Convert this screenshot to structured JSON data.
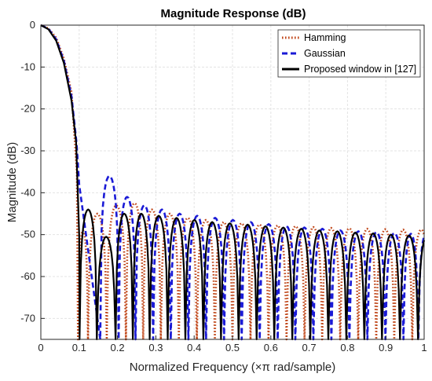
{
  "chart_data": {
    "type": "line",
    "title": "Magnitude Response (dB)",
    "xlabel": "Normalized Frequency (×π rad/sample)",
    "ylabel": "Magnitude (dB)",
    "xlim": [
      0,
      1
    ],
    "ylim": [
      -75,
      0
    ],
    "grid": true,
    "legend_position": "top-right",
    "x_ticks": [
      0,
      0.1,
      0.2,
      0.3,
      0.4,
      0.5,
      0.6,
      0.7,
      0.8,
      0.9,
      1
    ],
    "x_tick_labels": [
      "0",
      "0.1",
      "0.2",
      "0.3",
      "0.4",
      "0.5",
      "0.6",
      "0.7",
      "0.8",
      "0.9",
      "1"
    ],
    "y_ticks": [
      0,
      -10,
      -20,
      -30,
      -40,
      -50,
      -60,
      -70
    ],
    "y_tick_labels": [
      "0",
      "-10",
      "-20",
      "-30",
      "-40",
      "-50",
      "-60",
      "-70"
    ],
    "series": [
      {
        "name": "Hamming",
        "color": "#c0471a",
        "style": "dotted",
        "mainlobe": [
          [
            0,
            0
          ],
          [
            0.02,
            -0.8
          ],
          [
            0.04,
            -3
          ],
          [
            0.06,
            -8
          ],
          [
            0.08,
            -16
          ],
          [
            0.094,
            -35
          ]
        ],
        "nulls": [
          0.097,
          0.123,
          0.172,
          0.222,
          0.267,
          0.313,
          0.36,
          0.407,
          0.454,
          0.5,
          0.547,
          0.594,
          0.641,
          0.688,
          0.734,
          0.781,
          0.828,
          0.875,
          0.922,
          0.969
        ],
        "sidelobe_peaks": [
          -49,
          -45,
          -43,
          -42.5,
          -44,
          -45,
          -46,
          -46.5,
          -47,
          -47.3,
          -47.6,
          -47.8,
          -48,
          -48.2,
          -48.4,
          -48.5,
          -48.6,
          -48.7,
          -48.8
        ]
      },
      {
        "name": "Gaussian",
        "color": "#1a1ad6",
        "style": "dashed",
        "mainlobe": [
          [
            0,
            0
          ],
          [
            0.02,
            -0.9
          ],
          [
            0.04,
            -3.4
          ],
          [
            0.06,
            -8.5
          ],
          [
            0.08,
            -17
          ],
          [
            0.093,
            -28
          ],
          [
            0.1,
            -38
          ]
        ],
        "nulls": [
          0.155,
          0.203,
          0.247,
          0.293,
          0.339,
          0.385,
          0.431,
          0.478,
          0.524,
          0.571,
          0.618,
          0.664,
          0.711,
          0.758,
          0.805,
          0.852,
          0.899,
          0.946,
          0.985
        ],
        "sidelobe_peaks": [
          -36,
          -41,
          -43,
          -44,
          -45,
          -45.5,
          -46,
          -46.5,
          -47,
          -47.5,
          -48,
          -48.3,
          -48.6,
          -49,
          -49.2,
          -49.4,
          -49.6,
          -49.8
        ]
      },
      {
        "name": "Proposed window in [127]",
        "color": "#000000",
        "style": "solid",
        "mainlobe": [
          [
            0,
            0
          ],
          [
            0.02,
            -1
          ],
          [
            0.04,
            -3.7
          ],
          [
            0.06,
            -9
          ],
          [
            0.08,
            -18
          ],
          [
            0.092,
            -28
          ],
          [
            0.1,
            -50
          ]
        ],
        "nulls": [
          0.101,
          0.146,
          0.195,
          0.24,
          0.284,
          0.331,
          0.377,
          0.424,
          0.47,
          0.516,
          0.563,
          0.609,
          0.656,
          0.703,
          0.75,
          0.797,
          0.844,
          0.89,
          0.937,
          0.984
        ],
        "sidelobe_peaks": [
          -44,
          -50.5,
          -45,
          -45,
          -45.5,
          -46,
          -46.5,
          -47,
          -47.3,
          -47.6,
          -48,
          -48.3,
          -48.6,
          -49,
          -49.2,
          -49.5,
          -49.7,
          -50,
          -50.2
        ]
      }
    ]
  }
}
